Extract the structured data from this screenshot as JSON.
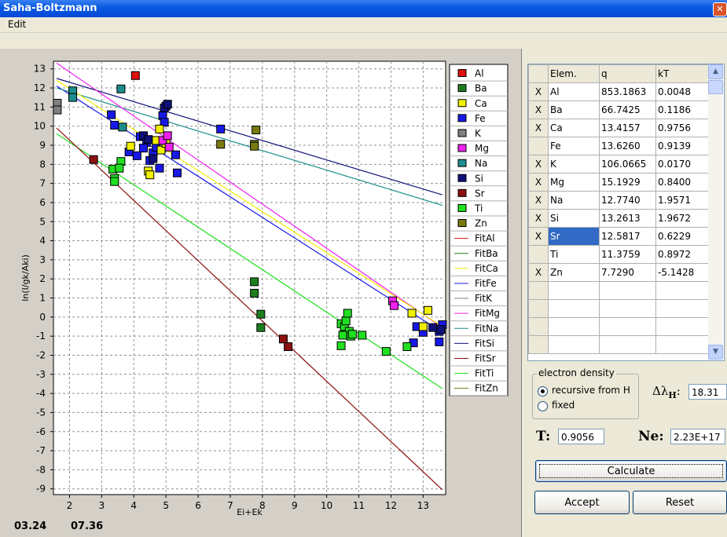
{
  "window": {
    "title": "Saha-Boltzmann",
    "close_glyph": "✕"
  },
  "menu": {
    "edit": "Edit"
  },
  "colors": {
    "Al": "#E01010",
    "Ba": "#1E7D1E",
    "Ca": "#F0F000",
    "Fe": "#1818E8",
    "K": "#808080",
    "Mg": "#F020F0",
    "Na": "#1C8C8C",
    "Si": "#10107A",
    "Sr": "#8C1010",
    "Ti": "#20E020",
    "Zn": "#7A7A10"
  },
  "chart_data": {
    "type": "scatter",
    "xlabel": "Ei+Ek",
    "ylabel": "ln(I/gk/Aki)",
    "xlim": [
      1.5,
      13.7
    ],
    "ylim": [
      -9.3,
      13.4
    ],
    "xticks": [
      "2",
      "3",
      "4",
      "5",
      "6",
      "7",
      "8",
      "9",
      "10",
      "11",
      "12",
      "13"
    ],
    "yticks": [
      "13",
      "12",
      "11",
      "10",
      "9",
      "8",
      "7",
      "6",
      "5",
      "4",
      "3",
      "2",
      "1",
      "0",
      "-1",
      "-2",
      "-3",
      "-4",
      "-5",
      "-6",
      "-7",
      "-8",
      "-9"
    ],
    "grid": true,
    "legend_position": "right",
    "legend": [
      "Al",
      "Ba",
      "Ca",
      "Fe",
      "K",
      "Mg",
      "Na",
      "Si",
      "Sr",
      "Ti",
      "Zn",
      "FitAl",
      "FitBa",
      "FitCa",
      "FitFe",
      "FitK",
      "FitMg",
      "FitNa",
      "FitSi",
      "FitSr",
      "FitTi",
      "FitZn"
    ],
    "series": [
      {
        "name": "Al",
        "points": [
          [
            4.05,
            12.65
          ]
        ]
      },
      {
        "name": "K",
        "points": [
          [
            1.62,
            11.2
          ],
          [
            1.62,
            10.85
          ]
        ]
      },
      {
        "name": "Na",
        "points": [
          [
            2.1,
            11.85
          ],
          [
            2.1,
            11.5
          ],
          [
            3.6,
            11.95
          ],
          [
            3.65,
            9.95
          ]
        ]
      },
      {
        "name": "Fe",
        "points": [
          [
            3.3,
            10.6
          ],
          [
            3.4,
            10.05
          ],
          [
            3.85,
            8.65
          ],
          [
            4.1,
            8.45
          ],
          [
            4.2,
            9.45
          ],
          [
            4.4,
            9.15
          ],
          [
            4.5,
            8.2
          ],
          [
            4.6,
            8.6
          ],
          [
            4.7,
            8.9
          ],
          [
            4.8,
            7.8
          ],
          [
            4.3,
            8.85
          ],
          [
            4.9,
            10.55
          ],
          [
            5.0,
            11.05
          ],
          [
            4.95,
            10.2
          ],
          [
            5.3,
            8.5
          ],
          [
            5.35,
            7.55
          ],
          [
            6.7,
            9.85
          ],
          [
            12.7,
            -1.35
          ],
          [
            12.8,
            -0.5
          ],
          [
            13.0,
            -0.8
          ],
          [
            13.5,
            -1.3
          ],
          [
            13.6,
            -0.4
          ],
          [
            13.5,
            -0.75
          ]
        ]
      },
      {
        "name": "Si",
        "points": [
          [
            4.3,
            9.5
          ],
          [
            4.45,
            9.3
          ],
          [
            4.95,
            10.95
          ],
          [
            5.05,
            11.15
          ],
          [
            4.6,
            8.3
          ],
          [
            13.3,
            -0.55
          ],
          [
            13.55,
            -0.65
          ]
        ]
      },
      {
        "name": "Ca",
        "points": [
          [
            3.9,
            8.95
          ],
          [
            4.45,
            7.65
          ],
          [
            4.5,
            7.45
          ],
          [
            4.7,
            9.25
          ],
          [
            4.8,
            9.85
          ],
          [
            4.85,
            8.75
          ],
          [
            5.0,
            9.1
          ],
          [
            12.65,
            0.2
          ],
          [
            13.0,
            -0.5
          ],
          [
            13.15,
            0.35
          ]
        ]
      },
      {
        "name": "Mg",
        "points": [
          [
            4.9,
            9.25
          ],
          [
            5.05,
            9.5
          ],
          [
            5.1,
            8.9
          ],
          [
            12.05,
            0.85
          ],
          [
            12.1,
            0.6
          ]
        ]
      },
      {
        "name": "Ba",
        "points": [
          [
            7.75,
            1.85
          ],
          [
            7.75,
            1.25
          ],
          [
            7.95,
            0.15
          ],
          [
            7.95,
            -0.55
          ]
        ]
      },
      {
        "name": "Sr",
        "points": [
          [
            2.75,
            8.25
          ],
          [
            8.65,
            -1.15
          ],
          [
            8.8,
            -1.55
          ]
        ]
      },
      {
        "name": "Ti",
        "points": [
          [
            3.35,
            7.75
          ],
          [
            3.4,
            7.25
          ],
          [
            3.4,
            7.1
          ],
          [
            3.6,
            8.15
          ],
          [
            3.55,
            7.8
          ],
          [
            10.45,
            -0.35
          ],
          [
            10.55,
            -0.5
          ],
          [
            10.6,
            -0.2
          ],
          [
            10.65,
            0.2
          ],
          [
            10.7,
            -0.75
          ],
          [
            10.75,
            -1.0
          ],
          [
            10.5,
            -0.95
          ],
          [
            10.45,
            -1.5
          ],
          [
            10.8,
            -0.9
          ],
          [
            11.1,
            -0.95
          ],
          [
            11.85,
            -1.8
          ],
          [
            12.5,
            -1.55
          ]
        ]
      },
      {
        "name": "Zn",
        "points": [
          [
            6.7,
            9.05
          ],
          [
            7.75,
            9.05
          ],
          [
            7.75,
            8.95
          ],
          [
            7.8,
            9.8
          ]
        ]
      }
    ],
    "fits": [
      {
        "name": "FitFe",
        "x": [
          1.6,
          13.6
        ],
        "y": [
          12.1,
          -0.8
        ]
      },
      {
        "name": "FitSi",
        "x": [
          1.6,
          13.6
        ],
        "y": [
          12.5,
          6.4
        ]
      },
      {
        "name": "FitNa",
        "x": [
          1.6,
          13.6
        ],
        "y": [
          12.0,
          5.85
        ]
      },
      {
        "name": "FitMg",
        "x": [
          1.6,
          13.6
        ],
        "y": [
          13.3,
          -0.55
        ]
      },
      {
        "name": "FitCa",
        "x": [
          1.6,
          13.6
        ],
        "y": [
          12.4,
          -0.5
        ]
      },
      {
        "name": "FitTi",
        "x": [
          1.6,
          13.6
        ],
        "y": [
          9.6,
          -3.75
        ]
      },
      {
        "name": "FitSr",
        "x": [
          1.6,
          13.6
        ],
        "y": [
          9.9,
          -9.05
        ]
      }
    ]
  },
  "bottom_labels": {
    "left": "03.24",
    "right": "07.36"
  },
  "table": {
    "headers": [
      "",
      "Elem.",
      "q",
      "kT"
    ],
    "rows": [
      {
        "sel": "X",
        "elem": "Al",
        "q": "853.1863",
        "kt": "0.0048"
      },
      {
        "sel": "X",
        "elem": "Ba",
        "q": "66.7425",
        "kt": "0.1186"
      },
      {
        "sel": "X",
        "elem": "Ca",
        "q": "13.4157",
        "kt": "0.9756"
      },
      {
        "sel": "",
        "elem": "Fe",
        "q": "13.6260",
        "kt": "0.9139"
      },
      {
        "sel": "X",
        "elem": "K",
        "q": "106.0665",
        "kt": "0.0170"
      },
      {
        "sel": "X",
        "elem": "Mg",
        "q": "15.1929",
        "kt": "0.8400"
      },
      {
        "sel": "X",
        "elem": "Na",
        "q": "12.7740",
        "kt": "1.9571"
      },
      {
        "sel": "X",
        "elem": "Si",
        "q": "13.2613",
        "kt": "1.9672"
      },
      {
        "sel": "X",
        "elem": "Sr",
        "q": "12.5817",
        "kt": "0.6229"
      },
      {
        "sel": "",
        "elem": "Ti",
        "q": "11.3759",
        "kt": "0.8972"
      },
      {
        "sel": "X",
        "elem": "Zn",
        "q": "7.7290",
        "kt": "-5.1428"
      }
    ],
    "empty_rows": 4
  },
  "electron_density": {
    "label": "electron density",
    "opt_recursive": "recursive from H",
    "opt_fixed": "fixed",
    "selected": "recursive from H",
    "dl_symbol": "Δλ",
    "dl_sub": "H",
    "dl_colon": ":",
    "dl_value": "18.31"
  },
  "params": {
    "t_label": "T:",
    "t_value": "0.9056",
    "ne_label": "Ne:",
    "ne_value": "2.23E+17"
  },
  "buttons": {
    "calculate": "Calculate",
    "accept": "Accept",
    "reset": "Reset"
  }
}
